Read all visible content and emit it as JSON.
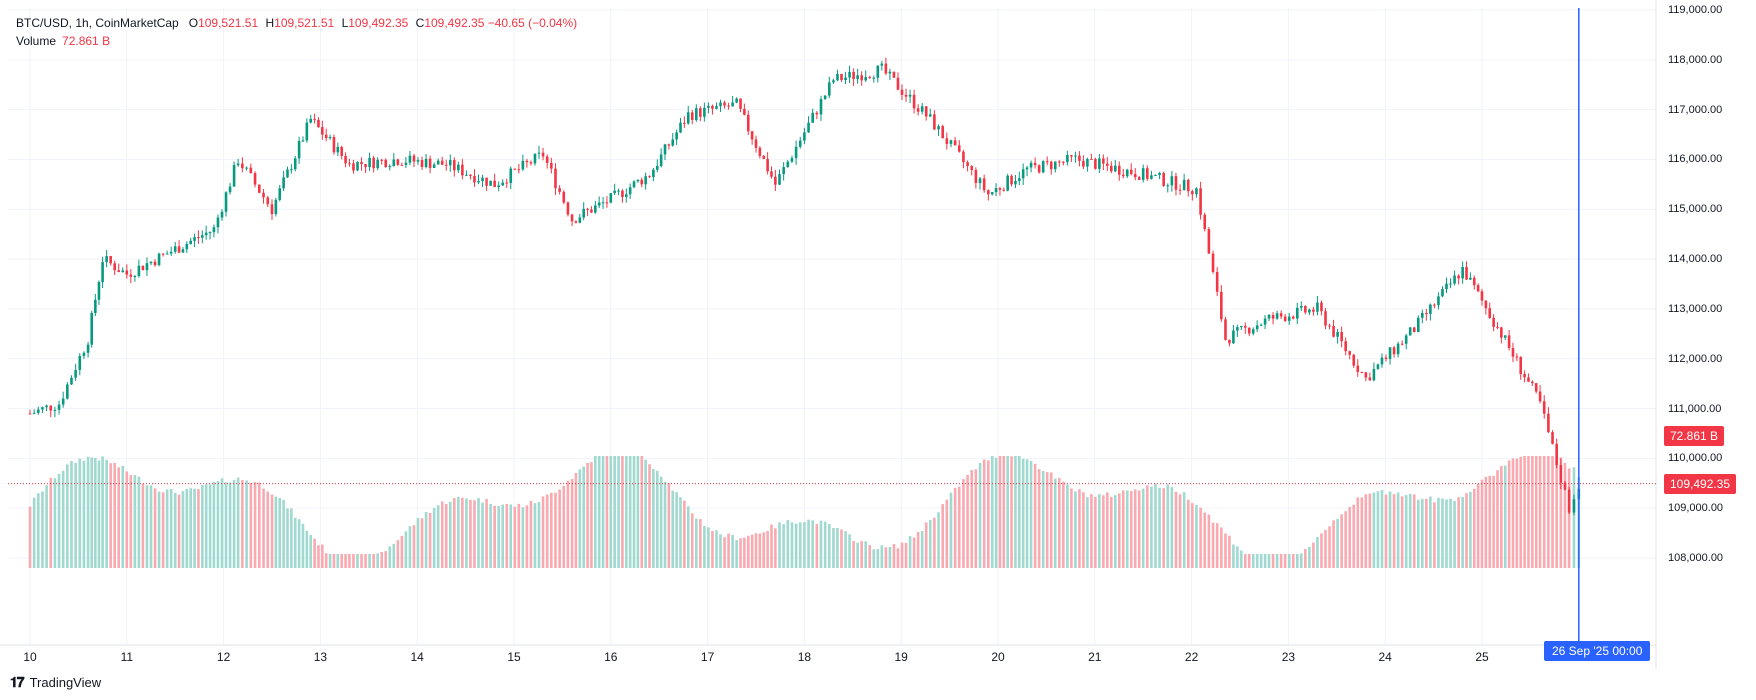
{
  "header": {
    "symbol": "BTC/USD, 1h, CoinMarketCap",
    "open_label": "O",
    "open": "109,521.51",
    "high_label": "H",
    "high": "109,521.51",
    "low_label": "L",
    "low": "109,492.35",
    "close_label": "C",
    "close": "109,492.35",
    "change": "−40.65 (−0.04%)",
    "volume_label": "Volume",
    "volume_value": "72.861 B"
  },
  "price_axis": {
    "ticks": [
      "119,000.00",
      "118,000.00",
      "117,000.00",
      "116,000.00",
      "115,000.00",
      "114,000.00",
      "113,000.00",
      "112,000.00",
      "111,000.00",
      "110,000.00",
      "109,000.00",
      "108,000.00"
    ],
    "last_price_badge": "109,492.35",
    "volume_badge": "72.861 B"
  },
  "time_axis": {
    "ticks": [
      "10",
      "11",
      "12",
      "13",
      "14",
      "15",
      "16",
      "17",
      "18",
      "19",
      "20",
      "21",
      "22",
      "23",
      "24",
      "25"
    ],
    "crosshair_label": "26 Sep '25   00:00"
  },
  "branding": {
    "logo_text": "TradingView"
  },
  "colors": {
    "up": "#089981",
    "down": "#f23645",
    "vol_up": "#9fd9cf",
    "vol_down": "#f9a9b0",
    "crosshair": "#2962ff",
    "grid": "#f0f3fa"
  },
  "chart_data": {
    "type": "candlestick",
    "interval": "1h",
    "y_axis_range": [
      108000,
      119000
    ],
    "last_price": 109492.35,
    "volume_last": "72.861 B",
    "x_range_days": [
      "Sep 10",
      "Sep 26"
    ],
    "hourly_close_path": [
      {
        "day": 10,
        "price": 110900
      },
      {
        "day": 10.3,
        "price": 111100
      },
      {
        "day": 10.6,
        "price": 112400
      },
      {
        "day": 10.75,
        "price": 114000
      },
      {
        "day": 11,
        "price": 113700
      },
      {
        "day": 11.5,
        "price": 114200
      },
      {
        "day": 11.9,
        "price": 114600
      },
      {
        "day": 12.15,
        "price": 116000
      },
      {
        "day": 12.5,
        "price": 115000
      },
      {
        "day": 12.9,
        "price": 116800
      },
      {
        "day": 13.3,
        "price": 115900
      },
      {
        "day": 13.8,
        "price": 116000
      },
      {
        "day": 14.3,
        "price": 115900
      },
      {
        "day": 14.8,
        "price": 115500
      },
      {
        "day": 15.3,
        "price": 116100
      },
      {
        "day": 15.6,
        "price": 114800
      },
      {
        "day": 16,
        "price": 115200
      },
      {
        "day": 16.4,
        "price": 115700
      },
      {
        "day": 16.8,
        "price": 116900
      },
      {
        "day": 17.3,
        "price": 117100
      },
      {
        "day": 17.7,
        "price": 115500
      },
      {
        "day": 18.3,
        "price": 117600
      },
      {
        "day": 18.8,
        "price": 117800
      },
      {
        "day": 19.3,
        "price": 116800
      },
      {
        "day": 19.9,
        "price": 115300
      },
      {
        "day": 20.3,
        "price": 115800
      },
      {
        "day": 20.8,
        "price": 116000
      },
      {
        "day": 21.5,
        "price": 115700
      },
      {
        "day": 22.05,
        "price": 115400
      },
      {
        "day": 22.35,
        "price": 112400
      },
      {
        "day": 22.8,
        "price": 112800
      },
      {
        "day": 23.3,
        "price": 113000
      },
      {
        "day": 23.8,
        "price": 111600
      },
      {
        "day": 24.3,
        "price": 112600
      },
      {
        "day": 24.8,
        "price": 113800
      },
      {
        "day": 25.2,
        "price": 112500
      },
      {
        "day": 25.6,
        "price": 111100
      },
      {
        "day": 25.9,
        "price": 109000
      },
      {
        "day": 26.0,
        "price": 109492.35
      }
    ]
  }
}
